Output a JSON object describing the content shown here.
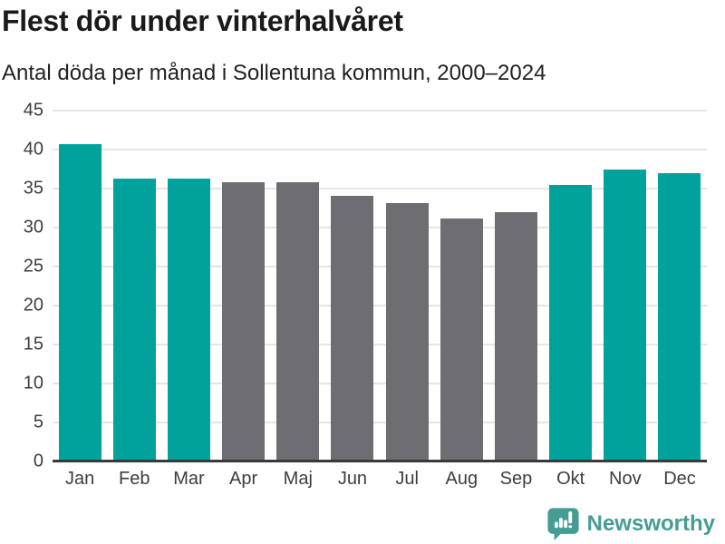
{
  "header": {
    "title": "Flest dör under vinterhalvåret",
    "subtitle": "Antal döda per månad i Sollentuna kommun, 2000–2024"
  },
  "chart_data": {
    "type": "bar",
    "title": "Flest dör under vinterhalvåret",
    "subtitle": "Antal döda per månad i Sollentuna kommun, 2000–2024",
    "categories": [
      "Jan",
      "Feb",
      "Mar",
      "Apr",
      "Maj",
      "Jun",
      "Jul",
      "Aug",
      "Sep",
      "Okt",
      "Nov",
      "Dec"
    ],
    "values": [
      40.7,
      36.3,
      36.3,
      35.8,
      35.8,
      34.1,
      33.1,
      31.2,
      32.0,
      35.5,
      37.4,
      37.0
    ],
    "bar_color_keys": [
      "winter",
      "winter",
      "winter",
      "summer",
      "summer",
      "summer",
      "summer",
      "summer",
      "summer",
      "winter",
      "winter",
      "winter"
    ],
    "palette": {
      "winter": "#00a29b",
      "summer": "#6d6d72"
    },
    "xlabel": "",
    "ylabel": "",
    "ylim": [
      0,
      45
    ],
    "yticks": [
      0,
      5,
      10,
      15,
      20,
      25,
      30,
      35,
      40,
      45
    ],
    "grid": true,
    "legend_position": "none",
    "gridline_color": "#e5e5e5",
    "axis_line_color": "#3a3a3a",
    "axis_label_color": "#3d3d3d"
  },
  "footer": {
    "brand_name": "Newsworthy",
    "brand_color": "#459c94",
    "logo_icon": "bar-chart-speech-bubble-icon"
  }
}
